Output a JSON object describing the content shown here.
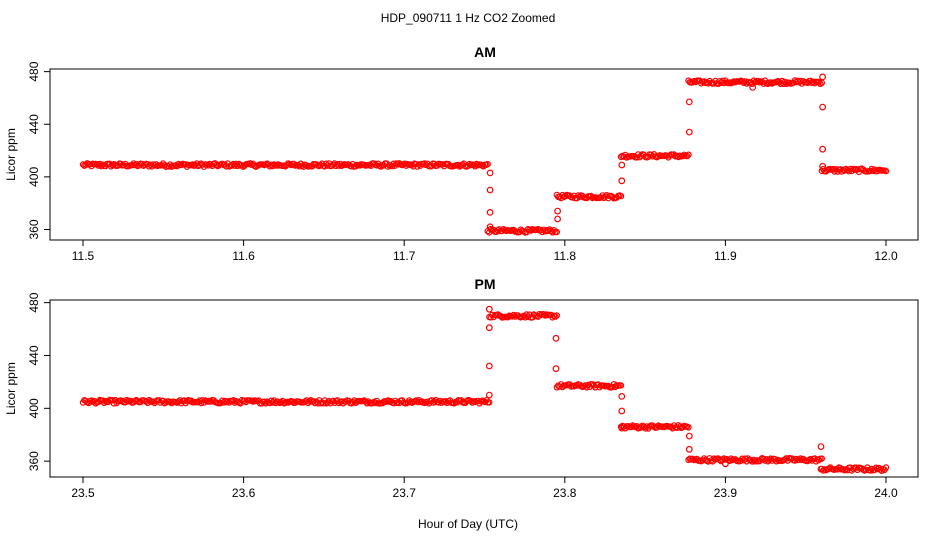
{
  "figure": {
    "title": "HDP_090711  1 Hz CO2 Zoomed",
    "xlabel": "Hour of Day (UTC)"
  },
  "colors": {
    "points": "#ff0000",
    "axis": "#000000"
  },
  "chart_data": [
    {
      "type": "scatter",
      "title": "AM",
      "ylabel": "Licor ppm",
      "xlim": [
        11.5,
        12.0
      ],
      "ylim": [
        352,
        482
      ],
      "xticks": [
        "11.5",
        "11.6",
        "11.7",
        "11.8",
        "11.9",
        "12.0"
      ],
      "yticks": [
        "360",
        "400",
        "440",
        "480"
      ],
      "marker": "open-circle",
      "segments": [
        {
          "x_start": 11.5,
          "x_end": 11.752,
          "y": 409
        },
        {
          "x_start": 11.752,
          "x_end": 11.795,
          "y": 359
        },
        {
          "x_start": 11.795,
          "x_end": 11.835,
          "y": 385
        },
        {
          "x_start": 11.835,
          "x_end": 11.877,
          "y": 416
        },
        {
          "x_start": 11.877,
          "x_end": 11.96,
          "y": 472
        },
        {
          "x_start": 11.96,
          "x_end": 12.0,
          "y": 405
        }
      ],
      "transition_points": [
        {
          "x": 11.7535,
          "y": 403
        },
        {
          "x": 11.7535,
          "y": 390
        },
        {
          "x": 11.7535,
          "y": 373
        },
        {
          "x": 11.7535,
          "y": 362
        },
        {
          "x": 11.7955,
          "y": 368
        },
        {
          "x": 11.7955,
          "y": 374
        },
        {
          "x": 11.8355,
          "y": 397
        },
        {
          "x": 11.8355,
          "y": 409
        },
        {
          "x": 11.8775,
          "y": 434
        },
        {
          "x": 11.8775,
          "y": 457
        },
        {
          "x": 11.9605,
          "y": 476
        },
        {
          "x": 11.9605,
          "y": 453
        },
        {
          "x": 11.9605,
          "y": 421
        },
        {
          "x": 11.9605,
          "y": 408
        },
        {
          "x": 11.917,
          "y": 468
        }
      ]
    },
    {
      "type": "scatter",
      "title": "PM",
      "ylabel": "Licor ppm",
      "xlim": [
        23.5,
        24.0
      ],
      "ylim": [
        348,
        482
      ],
      "xticks": [
        "23.5",
        "23.6",
        "23.7",
        "23.8",
        "23.9",
        "24.0"
      ],
      "yticks": [
        "360",
        "400",
        "440",
        "480"
      ],
      "marker": "open-circle",
      "segments": [
        {
          "x_start": 23.5,
          "x_end": 23.753,
          "y": 405
        },
        {
          "x_start": 23.753,
          "x_end": 23.795,
          "y": 470
        },
        {
          "x_start": 23.795,
          "x_end": 23.835,
          "y": 417
        },
        {
          "x_start": 23.835,
          "x_end": 23.877,
          "y": 386
        },
        {
          "x_start": 23.877,
          "x_end": 23.96,
          "y": 361
        },
        {
          "x_start": 23.96,
          "x_end": 24.0,
          "y": 354
        }
      ],
      "transition_points": [
        {
          "x": 23.753,
          "y": 410
        },
        {
          "x": 23.753,
          "y": 432
        },
        {
          "x": 23.753,
          "y": 461
        },
        {
          "x": 23.753,
          "y": 475
        },
        {
          "x": 23.7945,
          "y": 453
        },
        {
          "x": 23.7945,
          "y": 430
        },
        {
          "x": 23.8355,
          "y": 409
        },
        {
          "x": 23.8355,
          "y": 398
        },
        {
          "x": 23.8355,
          "y": 385
        },
        {
          "x": 23.8775,
          "y": 379
        },
        {
          "x": 23.8775,
          "y": 369
        },
        {
          "x": 23.9595,
          "y": 371
        },
        {
          "x": 23.9595,
          "y": 354
        },
        {
          "x": 23.9,
          "y": 358
        }
      ]
    }
  ]
}
